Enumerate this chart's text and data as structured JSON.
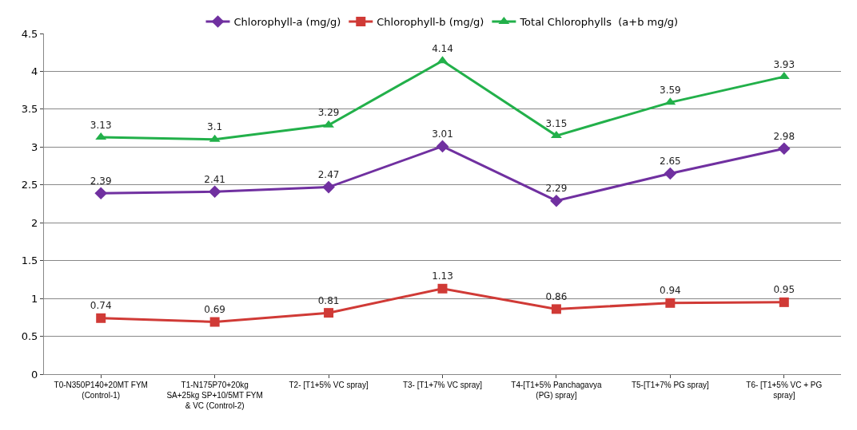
{
  "chart_data": {
    "type": "line",
    "categories": [
      "T0-N350P140+20MT FYM (Control-1)",
      "T1-N175P70+20kg SA+25kg SP+10/5MT FYM & VC (Control-2)",
      "T2- [T1+5% VC spray]",
      "T3- [T1+7% VC spray]",
      "T4-[T1+5% Panchagavya (PG) spray]",
      "T5-[T1+7% PG spray]",
      "T6- [T1+5% VC + PG spray]"
    ],
    "series": [
      {
        "name": "Chlorophyll-a (mg/g)",
        "color": "#7030a0",
        "marker": "diamond",
        "values": [
          2.39,
          2.41,
          2.47,
          3.01,
          2.29,
          2.65,
          2.98
        ]
      },
      {
        "name": "Chlorophyll-b (mg/g)",
        "color": "#d03a36",
        "marker": "square",
        "values": [
          0.74,
          0.69,
          0.81,
          1.13,
          0.86,
          0.94,
          0.95
        ]
      },
      {
        "name": "Total Chlorophylls  (a+b mg/g)",
        "color": "#22b04a",
        "marker": "triangle",
        "values": [
          3.13,
          3.1,
          3.29,
          4.14,
          3.15,
          3.59,
          3.93
        ]
      }
    ],
    "ylim": [
      0,
      4.5
    ],
    "yticks": [
      0,
      0.5,
      1,
      1.5,
      2,
      2.5,
      3,
      3.5,
      4,
      4.5
    ],
    "grid": "y",
    "legend": "top",
    "data_labels": true,
    "line_style": "solid"
  }
}
